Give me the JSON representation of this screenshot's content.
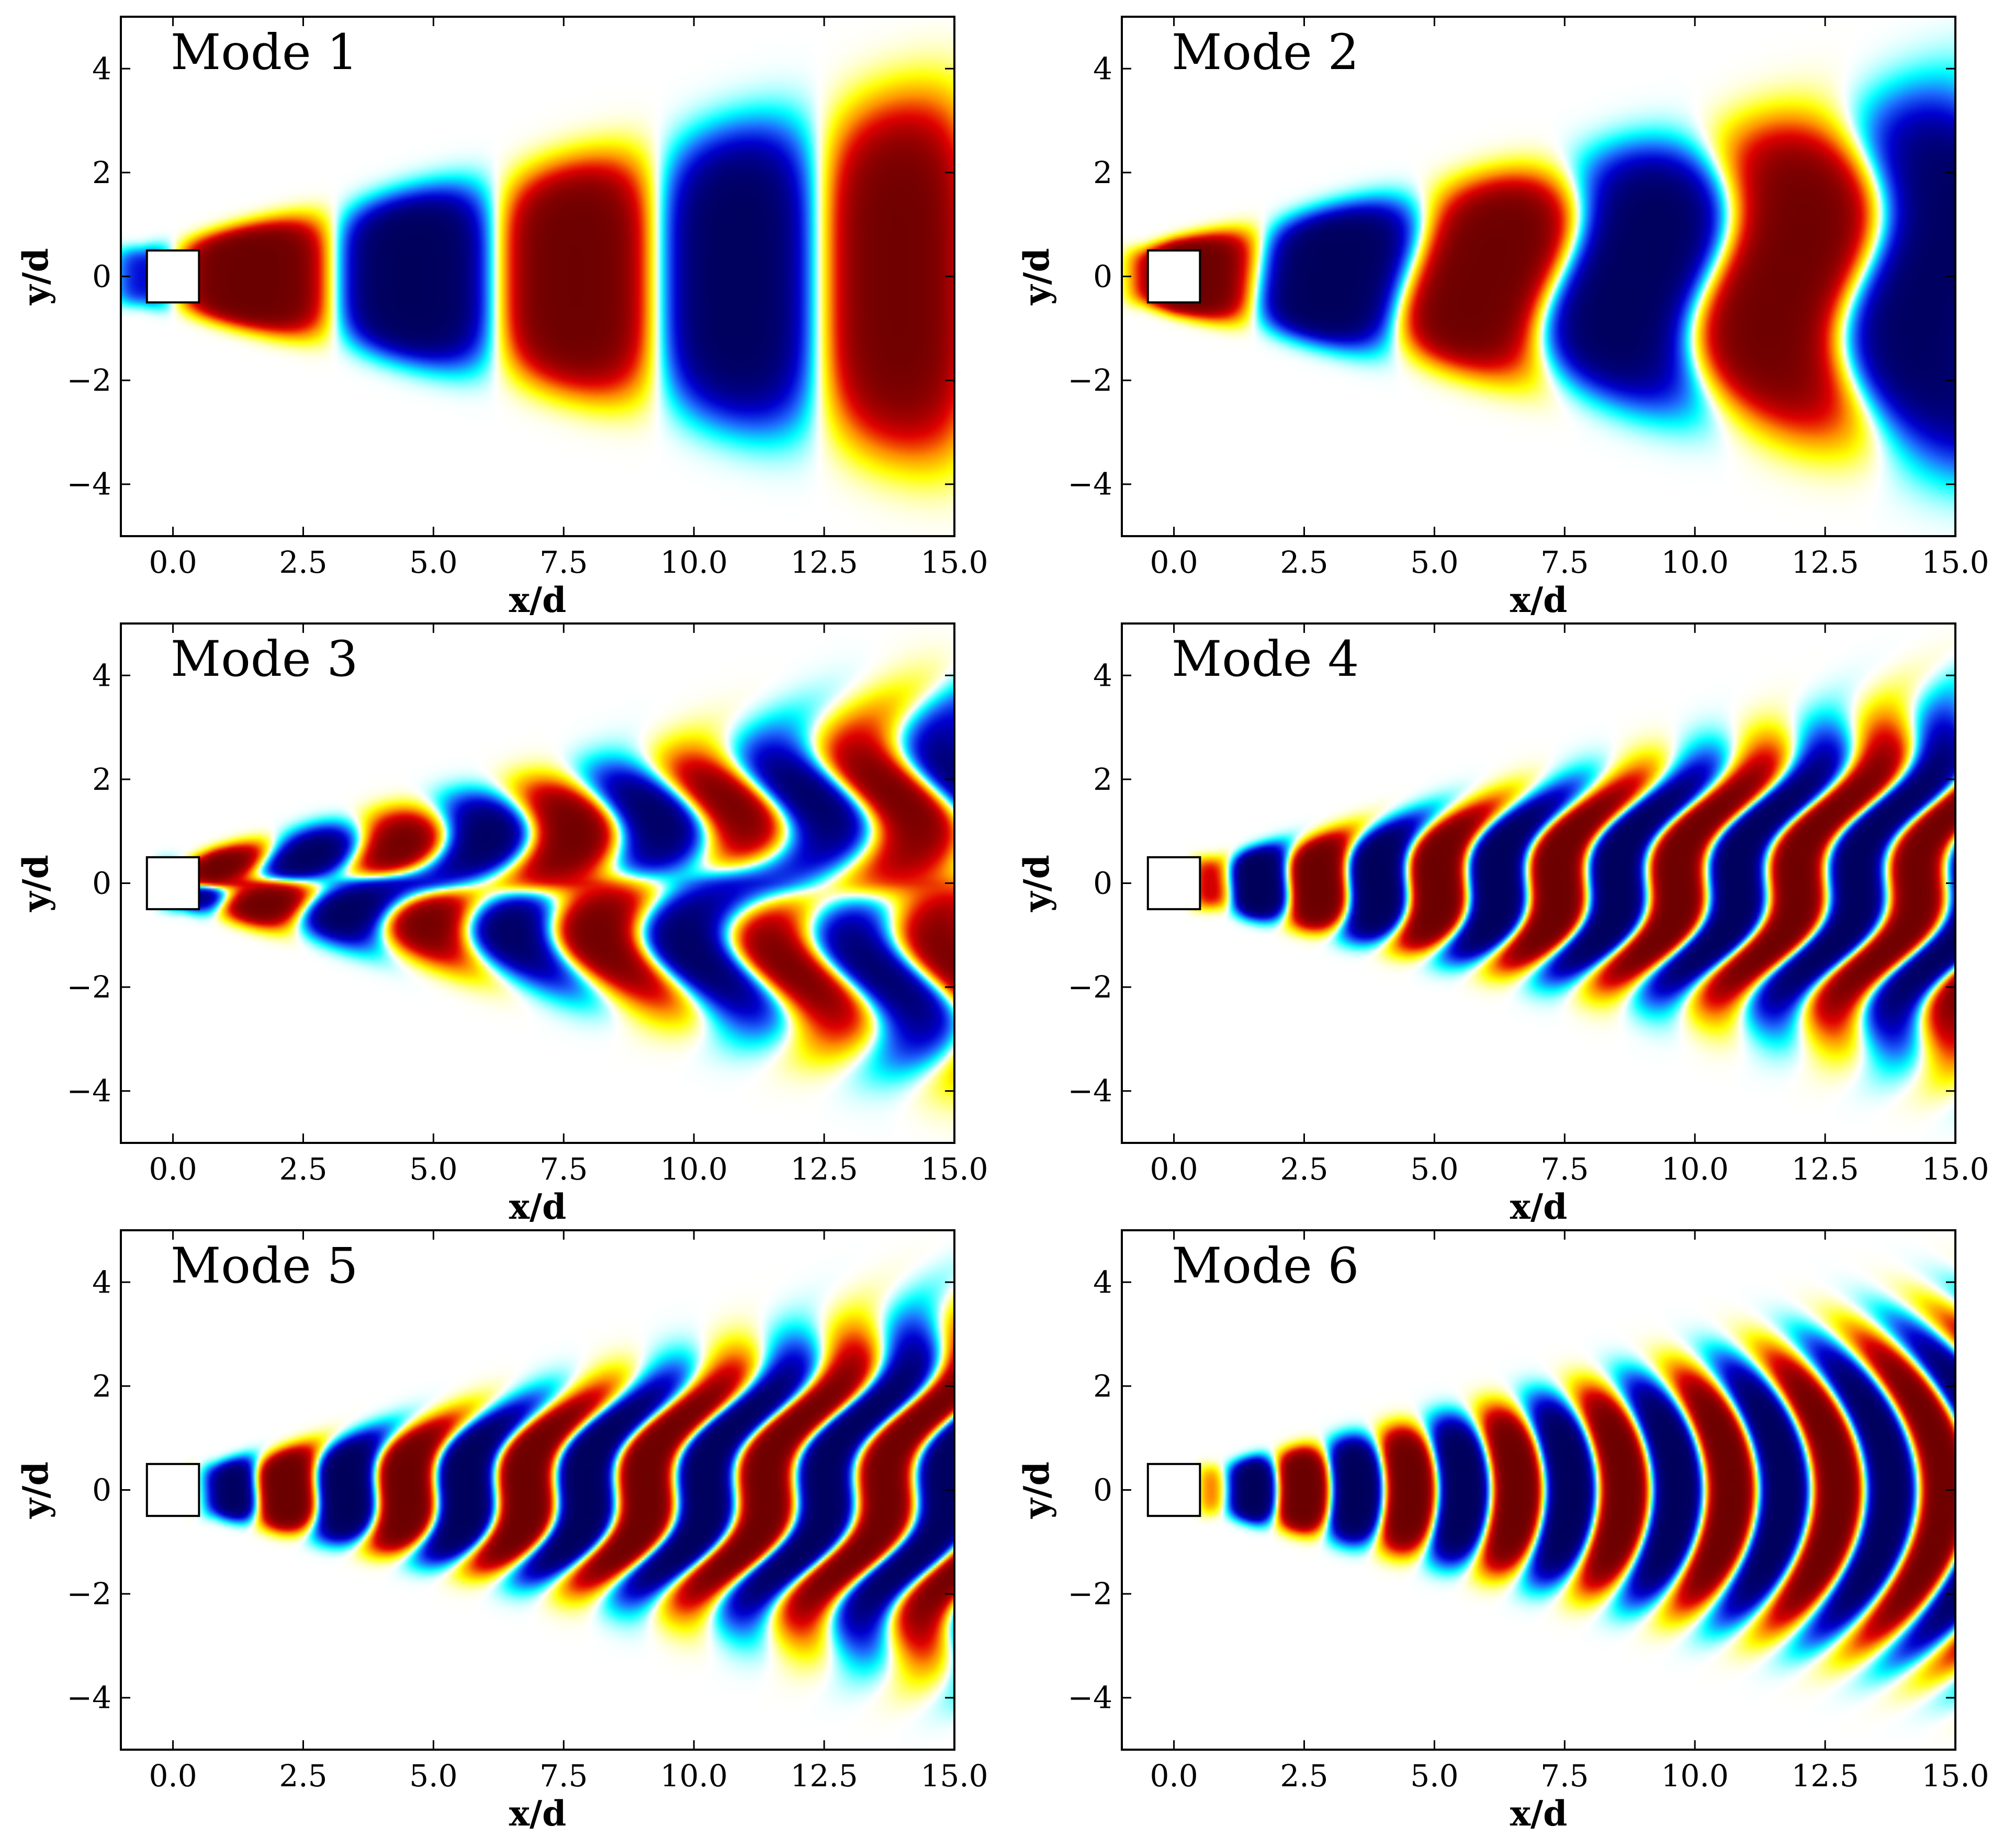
{
  "chart_data": [
    {
      "type": "heatmap",
      "title": "Mode 1",
      "xlabel": "x/d",
      "ylabel": "y/d",
      "xlim": [
        -1,
        15
      ],
      "ylim": [
        -5,
        5
      ],
      "xticks": [
        0,
        2.5,
        5,
        7.5,
        10,
        12.5,
        15
      ],
      "xtick_labels": [
        "0.0",
        "2.5",
        "5.0",
        "7.5",
        "10.0",
        "12.5",
        "15.0"
      ],
      "yticks": [
        -4,
        -2,
        0,
        2,
        4
      ],
      "ytick_labels": [
        "−4",
        "−2",
        "0",
        "2",
        "4"
      ],
      "body": {
        "x": [
          -0.5,
          0.5
        ],
        "y": [
          -0.5,
          0.5
        ]
      },
      "field": {
        "kind": "symmetric",
        "wavelength": 6.2,
        "phase": 0.0,
        "x_start": -0.6,
        "spread": 0.17,
        "halfwidth0": 0.5,
        "amplitude_decay": 0.02,
        "pinch": 0.0
      }
    },
    {
      "type": "heatmap",
      "title": "Mode 2",
      "xlabel": "x/d",
      "ylabel": "y/d",
      "xlim": [
        -1,
        15
      ],
      "ylim": [
        -5,
        5
      ],
      "xticks": [
        0,
        2.5,
        5,
        7.5,
        10,
        12.5,
        15
      ],
      "xtick_labels": [
        "0.0",
        "2.5",
        "5.0",
        "7.5",
        "10.0",
        "12.5",
        "15.0"
      ],
      "yticks": [
        -4,
        -2,
        0,
        2,
        4
      ],
      "ytick_labels": [
        "−4",
        "−2",
        "0",
        "2",
        "4"
      ],
      "body": {
        "x": [
          -0.5,
          0.5
        ],
        "y": [
          -0.5,
          0.5
        ]
      },
      "field": {
        "kind": "symmetric",
        "wavelength": 5.8,
        "phase": 1.4,
        "x_start": -0.6,
        "spread": 0.17,
        "halfwidth0": 0.5,
        "amplitude_decay": 0.02,
        "pinch": 0.35
      }
    },
    {
      "type": "heatmap",
      "title": "Mode 3",
      "xlabel": "x/d",
      "ylabel": "y/d",
      "xlim": [
        -1,
        15
      ],
      "ylim": [
        -5,
        5
      ],
      "xticks": [
        0,
        2.5,
        5,
        7.5,
        10,
        12.5,
        15
      ],
      "xtick_labels": [
        "0.0",
        "2.5",
        "5.0",
        "7.5",
        "10.0",
        "12.5",
        "15.0"
      ],
      "yticks": [
        -4,
        -2,
        0,
        2,
        4
      ],
      "ytick_labels": [
        "−4",
        "−2",
        "0",
        "2",
        "4"
      ],
      "body": {
        "x": [
          -0.5,
          0.5
        ],
        "y": [
          -0.5,
          0.5
        ]
      },
      "field": {
        "kind": "antisymmetric",
        "wavelength": 3.3,
        "phase": 0.6,
        "x_start": 0.2,
        "spread": 0.18,
        "halfwidth0": 0.45,
        "amplitude_decay": 0.02,
        "pinch": 0.6
      }
    },
    {
      "type": "heatmap",
      "title": "Mode 4",
      "xlabel": "x/d",
      "ylabel": "y/d",
      "xlim": [
        -1,
        15
      ],
      "ylim": [
        -5,
        5
      ],
      "xticks": [
        0,
        2.5,
        5,
        7.5,
        10,
        12.5,
        15
      ],
      "xtick_labels": [
        "0.0",
        "2.5",
        "5.0",
        "7.5",
        "10.0",
        "12.5",
        "15.0"
      ],
      "yticks": [
        -4,
        -2,
        0,
        2,
        4
      ],
      "ytick_labels": [
        "−4",
        "−2",
        "0",
        "2",
        "4"
      ],
      "body": {
        "x": [
          -0.5,
          0.5
        ],
        "y": [
          -0.5,
          0.5
        ]
      },
      "field": {
        "kind": "oblique",
        "wavelength": 2.3,
        "phase": 0.3,
        "x_start": 0.8,
        "spread": 0.18,
        "halfwidth0": 0.45,
        "amplitude_decay": 0.02,
        "pinch": 0.5
      }
    },
    {
      "type": "heatmap",
      "title": "Mode 5",
      "xlabel": "x/d",
      "ylabel": "y/d",
      "xlim": [
        -1,
        15
      ],
      "ylim": [
        -5,
        5
      ],
      "xticks": [
        0,
        2.5,
        5,
        7.5,
        10,
        12.5,
        15
      ],
      "xtick_labels": [
        "0.0",
        "2.5",
        "5.0",
        "7.5",
        "10.0",
        "12.5",
        "15.0"
      ],
      "yticks": [
        -4,
        -2,
        0,
        2,
        4
      ],
      "ytick_labels": [
        "−4",
        "−2",
        "0",
        "2",
        "4"
      ],
      "body": {
        "x": [
          -0.5,
          0.5
        ],
        "y": [
          -0.5,
          0.5
        ]
      },
      "field": {
        "kind": "oblique",
        "wavelength": 2.3,
        "phase": 1.9,
        "x_start": 0.8,
        "spread": 0.18,
        "halfwidth0": 0.45,
        "amplitude_decay": 0.02,
        "pinch": 0.5
      }
    },
    {
      "type": "heatmap",
      "title": "Mode 6",
      "xlabel": "x/d",
      "ylabel": "y/d",
      "xlim": [
        -1,
        15
      ],
      "ylim": [
        -5,
        5
      ],
      "xticks": [
        0,
        2.5,
        5,
        7.5,
        10,
        12.5,
        15
      ],
      "xtick_labels": [
        "0.0",
        "2.5",
        "5.0",
        "7.5",
        "10.0",
        "12.5",
        "15.0"
      ],
      "yticks": [
        -4,
        -2,
        0,
        2,
        4
      ],
      "ytick_labels": [
        "−4",
        "−2",
        "0",
        "2",
        "4"
      ],
      "body": {
        "x": [
          -0.5,
          0.5
        ],
        "y": [
          -0.5,
          0.5
        ]
      },
      "field": {
        "kind": "arc",
        "wavelength": 2.05,
        "phase": 0.2,
        "x_start": 1.0,
        "spread": 0.18,
        "halfwidth0": 0.45,
        "amplitude_decay": 0.015,
        "pinch": 0.0
      }
    }
  ],
  "colormap": {
    "name": "diverging",
    "stops": [
      "#00005a",
      "#0000d0",
      "#1e6fff",
      "#00ffff",
      "#ffffff",
      "#ffff00",
      "#ff9000",
      "#e00000",
      "#6a0000"
    ]
  }
}
